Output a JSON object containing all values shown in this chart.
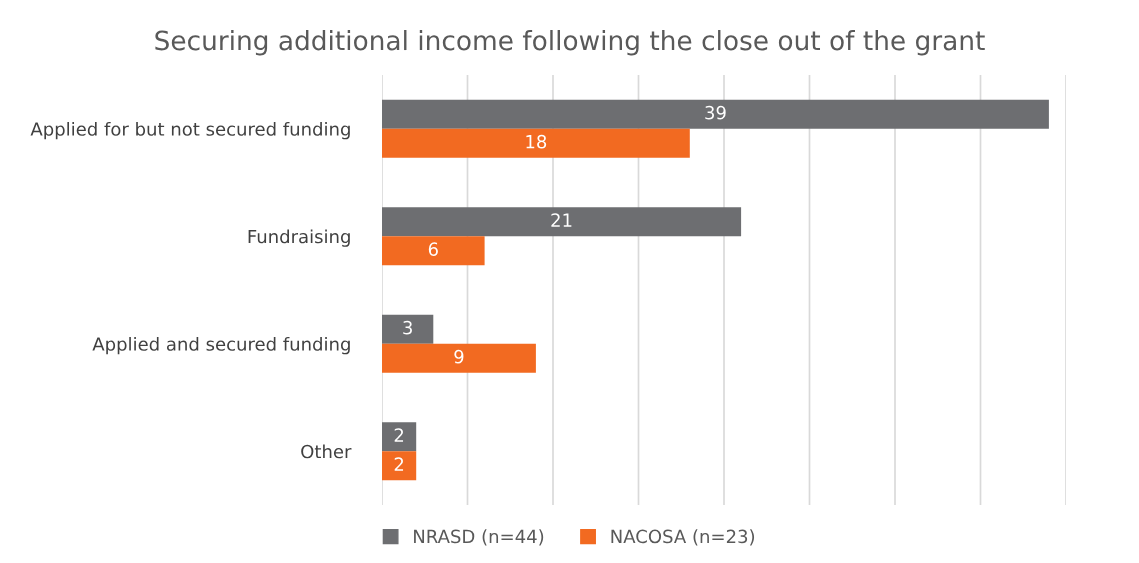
{
  "chart_data": {
    "type": "bar",
    "orientation": "horizontal",
    "title": "Securing additional income following the close out of the grant",
    "categories": [
      "Applied for but not secured funding",
      "Fundraising",
      "Applied and secured funding",
      "Other"
    ],
    "series": [
      {
        "name": "NRASD (n=44)",
        "color": "#6d6e71",
        "values": [
          39,
          21,
          3,
          2
        ]
      },
      {
        "name": "NACOSA (n=23)",
        "color": "#f26a21",
        "values": [
          18,
          6,
          9,
          2
        ]
      }
    ],
    "xlim": [
      0,
      40
    ],
    "xticks": [
      {
        "value": 0,
        "label": null
      },
      {
        "value": 5,
        "label": null
      },
      {
        "value": 10,
        "label": null
      },
      {
        "value": 15,
        "label": null
      },
      {
        "value": 20,
        "label": null
      },
      {
        "value": 25,
        "label": null
      },
      {
        "value": 30,
        "label": null
      },
      {
        "value": 35,
        "label": null
      },
      {
        "value": 40,
        "label": null
      }
    ],
    "tick_labels": "y",
    "grid": "x",
    "data_labels": true,
    "legend": "bottom"
  }
}
